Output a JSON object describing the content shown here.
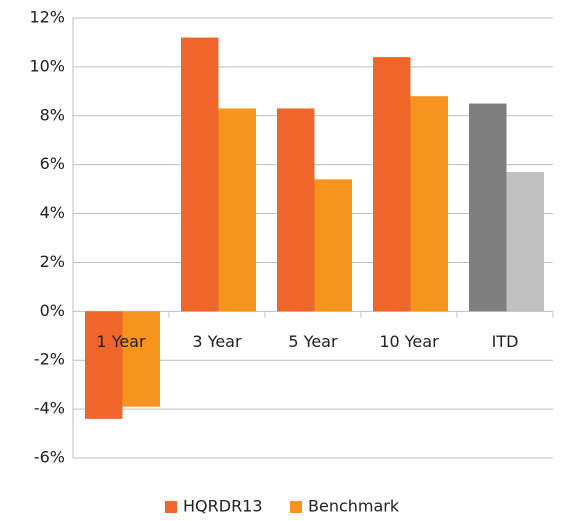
{
  "chart_data": {
    "type": "bar",
    "categories": [
      "1 Year",
      "3 Year",
      "5 Year",
      "10 Year",
      "ITD"
    ],
    "series": [
      {
        "name": "HQRDR13",
        "color": "#f0662a",
        "colors": [
          "#f0662a",
          "#f0662a",
          "#f0662a",
          "#f0662a",
          "#7f7f7f"
        ],
        "values": [
          -4.4,
          11.2,
          8.3,
          10.4,
          8.5
        ]
      },
      {
        "name": "Benchmark",
        "color": "#f7941d",
        "colors": [
          "#f7941d",
          "#f7941d",
          "#f7941d",
          "#f7941d",
          "#c0c0c0"
        ],
        "values": [
          -3.9,
          8.3,
          5.4,
          8.8,
          5.7
        ]
      }
    ],
    "ylim": [
      -6,
      12
    ],
    "yticks": [
      {
        "value": -6,
        "label": "-6%"
      },
      {
        "value": -4,
        "label": "-4%"
      },
      {
        "value": -2,
        "label": "-2%"
      },
      {
        "value": 0,
        "label": "0%"
      },
      {
        "value": 2,
        "label": "2%"
      },
      {
        "value": 4,
        "label": "4%"
      },
      {
        "value": 6,
        "label": "6%"
      },
      {
        "value": 8,
        "label": "8%"
      },
      {
        "value": 10,
        "label": "10%"
      },
      {
        "value": 12,
        "label": "12%"
      }
    ],
    "grid": true,
    "legend": "bottom"
  }
}
